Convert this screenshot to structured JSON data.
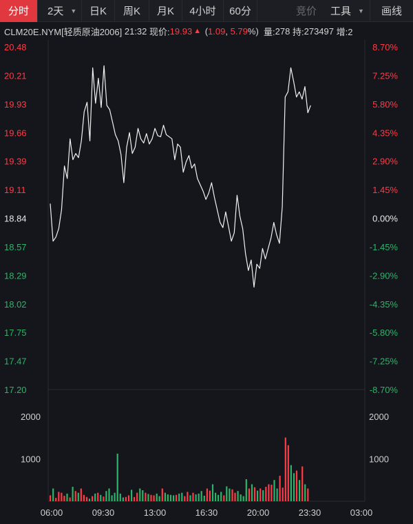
{
  "toolbar": {
    "tabs": [
      {
        "label": "分时",
        "active": true
      },
      {
        "label": "2天",
        "dropdown": true
      },
      {
        "label": "日K"
      },
      {
        "label": "周K"
      },
      {
        "label": "月K"
      },
      {
        "label": "4小时"
      },
      {
        "label": "60分"
      },
      {
        "label": "竞价",
        "disabled": true
      },
      {
        "label": "工具",
        "dropdown": true
      },
      {
        "label": "画线"
      }
    ]
  },
  "quote": {
    "symbol": "CLM20E.NYM[轻质原油2006]",
    "time": "21:32",
    "price_label": "现价:",
    "price": "19.93",
    "change": "1.09",
    "change_pct": "5.79",
    "volume_label": "量:",
    "volume": "278",
    "position_label": "持:",
    "position": "273497",
    "increase_label": "增:2"
  },
  "colors": {
    "up": "#ff3b45",
    "down": "#2fb36a",
    "neutral": "#e8e8e8",
    "line": "#f2f2f2",
    "grid": "#2a2c33"
  },
  "chart_data": {
    "type": "line",
    "price_axis_left": [
      "20.48",
      "20.21",
      "19.93",
      "19.66",
      "19.39",
      "19.11",
      "18.84",
      "18.57",
      "18.29",
      "18.02",
      "17.75",
      "17.47",
      "17.20"
    ],
    "price_axis_right": [
      "8.70%",
      "7.25%",
      "5.80%",
      "4.35%",
      "2.90%",
      "1.45%",
      "0.00%",
      "-1.45%",
      "-2.90%",
      "-4.35%",
      "-5.80%",
      "-7.25%",
      "-8.70%"
    ],
    "ylim": [
      17.2,
      20.48
    ],
    "prev_close": 18.84,
    "volume_axis": [
      "2000",
      "1000"
    ],
    "volume_ylim": [
      0,
      2500
    ],
    "time_axis": [
      "06:00",
      "09:30",
      "13:00",
      "16:30",
      "20:00",
      "23:30",
      "03:00"
    ],
    "price_series": [
      18.98,
      18.62,
      18.66,
      18.74,
      18.92,
      19.34,
      19.22,
      19.6,
      19.4,
      19.46,
      19.42,
      19.58,
      19.86,
      19.95,
      19.58,
      20.28,
      19.94,
      20.18,
      19.9,
      20.3,
      19.92,
      19.88,
      19.76,
      19.64,
      19.58,
      19.45,
      19.18,
      19.52,
      19.66,
      19.46,
      19.52,
      19.7,
      19.6,
      19.56,
      19.65,
      19.55,
      19.6,
      19.7,
      19.63,
      19.62,
      19.73,
      19.64,
      19.62,
      19.6,
      19.4,
      19.55,
      19.52,
      19.28,
      19.38,
      19.44,
      19.32,
      19.36,
      19.22,
      19.16,
      19.1,
      19.02,
      19.08,
      19.18,
      19.04,
      18.92,
      18.8,
      18.75,
      18.9,
      18.76,
      18.62,
      18.7,
      19.06,
      18.86,
      18.74,
      18.5,
      18.34,
      18.44,
      18.18,
      18.4,
      18.36,
      18.55,
      18.45,
      18.55,
      18.65,
      18.8,
      18.68,
      18.6,
      18.95,
      20.0,
      20.05,
      20.28,
      20.15,
      20.0,
      20.05,
      19.98,
      20.1,
      19.85,
      19.92
    ],
    "volume_series": [
      140,
      300,
      80,
      220,
      200,
      130,
      180,
      90,
      340,
      240,
      200,
      300,
      150,
      100,
      60,
      120,
      180,
      200,
      150,
      110,
      240,
      300,
      140,
      200,
      1120,
      180,
      90,
      100,
      140,
      270,
      100,
      200,
      300,
      260,
      200,
      170,
      150,
      140,
      180,
      120,
      300,
      200,
      160,
      150,
      140,
      150,
      180,
      200,
      120,
      220,
      140,
      200,
      160,
      180,
      240,
      130,
      300,
      250,
      400,
      200,
      150,
      220,
      140,
      350,
      300,
      280,
      200,
      240,
      160,
      120,
      520,
      300,
      400,
      330,
      250,
      300,
      260,
      340,
      400,
      390,
      500,
      300,
      600,
      320,
      1500,
      1320,
      850,
      660,
      720,
      500,
      820,
      400,
      300
    ]
  }
}
